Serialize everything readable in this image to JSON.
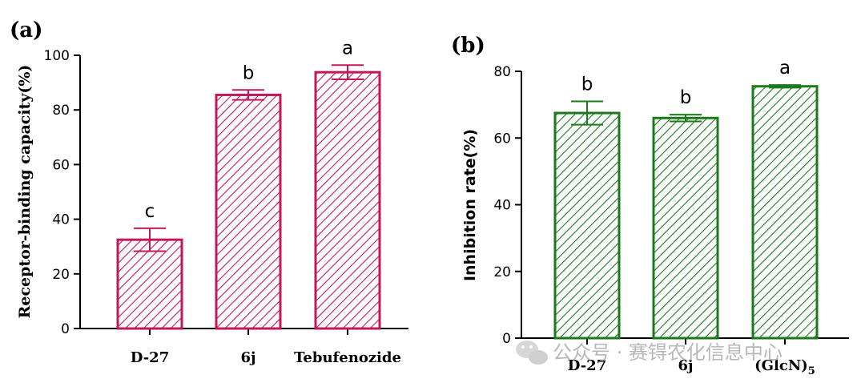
{
  "chart_data": [
    {
      "panel": "(a)",
      "type": "bar",
      "ylabel": "Receptor-binding capacity(%)",
      "ylim": [
        0,
        100
      ],
      "yticks": [
        0,
        20,
        40,
        60,
        80,
        100
      ],
      "categories": [
        "D-27",
        "6j",
        "Tebufenozide"
      ],
      "values": [
        32.5,
        85.5,
        93.8
      ],
      "errors": [
        4.2,
        1.8,
        2.6
      ],
      "significance": [
        "c",
        "b",
        "a"
      ],
      "color": "#c2185b",
      "grid": false
    },
    {
      "panel": "(b)",
      "type": "bar",
      "ylabel": "Inhibition rate(%)",
      "ylim": [
        0,
        80
      ],
      "yticks": [
        0,
        20,
        40,
        60,
        80
      ],
      "categories": [
        "D-27",
        "6j",
        "(GlcN)"
      ],
      "category_subscripts": [
        "",
        "",
        "5"
      ],
      "values": [
        67.5,
        66.0,
        75.5
      ],
      "errors": [
        3.5,
        1.0,
        0.4
      ],
      "significance": [
        "b",
        "b",
        "a"
      ],
      "color": "#1b7a1b",
      "grid": false
    }
  ],
  "watermark": {
    "text": "公众号 · 赛锝农化信息中心",
    "icon": "wechat-icon"
  }
}
